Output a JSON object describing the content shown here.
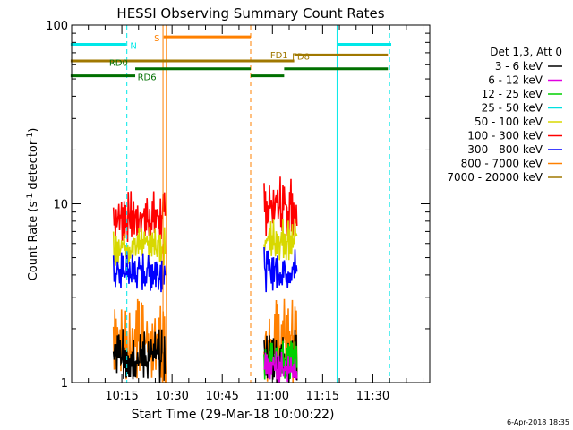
{
  "chart_data": {
    "type": "line",
    "title": "HESSI Observing Summary Count Rates",
    "xlabel": "Start Time (29-Mar-18 10:00:22)",
    "ylabel_main": "Count Rate (s",
    "ylabel_sup1": "-1",
    "ylabel_mid": " detector",
    "ylabel_sup2": "-1",
    "ylabel_end": ")",
    "yscale": "log",
    "ylim": [
      1,
      100
    ],
    "xlim_min": [
      0,
      107
    ],
    "yticks": [
      {
        "v": 1,
        "label": "1"
      },
      {
        "v": 10,
        "label": "10"
      },
      {
        "v": 100,
        "label": "100"
      }
    ],
    "xticks": [
      {
        "m": 15,
        "label": "10:15"
      },
      {
        "m": 30,
        "label": "10:30"
      },
      {
        "m": 45,
        "label": "10:45"
      },
      {
        "m": 60,
        "label": "11:00"
      },
      {
        "m": 75,
        "label": "11:15"
      },
      {
        "m": 90,
        "label": "11:30"
      }
    ],
    "legend": {
      "header": "Det 1,3, Att 0",
      "entries": [
        {
          "label": "3 - 6 keV",
          "color": "#000000"
        },
        {
          "label": "6 - 12 keV",
          "color": "#e000e0"
        },
        {
          "label": "12 - 25 keV",
          "color": "#00d000"
        },
        {
          "label": "25 - 50 keV",
          "color": "#00e0e0"
        },
        {
          "label": "50 - 100 keV",
          "color": "#d8d800"
        },
        {
          "label": "100 - 300 keV",
          "color": "#ff0000"
        },
        {
          "label": "300 - 800 keV",
          "color": "#0000ff"
        },
        {
          "label": "800 - 7000 keV",
          "color": "#ff8000"
        },
        {
          "label": "7000 - 20000 keV",
          "color": "#a07800"
        }
      ]
    },
    "flag_bars": [
      {
        "name": "N",
        "color": "#00e8e8",
        "y": 78,
        "x0": -0.3,
        "x1": 16.3,
        "label_at": 18.5,
        "label_above": false
      },
      {
        "name": "N2",
        "color": "#00e8e8",
        "y": 78,
        "x0": 79.5,
        "x1": 95.5,
        "label_at": null
      },
      {
        "name": "S",
        "color": "#ff8000",
        "y": 86,
        "x0": 27.5,
        "x1": 53.5,
        "label_at": 25.5,
        "label_above": false
      },
      {
        "name": "FD1",
        "color": "#a07800",
        "y": 63,
        "x0": -0.3,
        "x1": 66.5,
        "label_at": 62,
        "label_above": true
      },
      {
        "name": "FD8",
        "color": "#a07800",
        "y": 68,
        "x0": 66.5,
        "x1": 94.5,
        "label_at": 68.5,
        "label_above": false
      },
      {
        "name": "RD0",
        "color": "#007000",
        "y": 57,
        "x0": 19.0,
        "x1": 53.5,
        "label_at": 14.0,
        "label_above": true
      },
      {
        "name": "RD6",
        "color": "#007000",
        "y": 52,
        "x0": -0.3,
        "x1": 19.0,
        "label_at": 22.5,
        "label_above": false
      }
    ],
    "flag_bars_gap": [
      {
        "color": "#007000",
        "y": 52,
        "x0": 53.5,
        "x1": 63.5
      },
      {
        "color": "#007000",
        "y": 57,
        "x0": 63.5,
        "x1": 94.5
      }
    ],
    "vlines": [
      {
        "m": 0,
        "color": "#00e8e8",
        "dash": false
      },
      {
        "m": 16.5,
        "color": "#00e8e8",
        "dash": true
      },
      {
        "m": 27.3,
        "color": "#ff8000",
        "dash": false
      },
      {
        "m": 28.3,
        "color": "#ff8000",
        "dash": false
      },
      {
        "m": 53.5,
        "color": "#ff8000",
        "dash": true
      },
      {
        "m": 79.3,
        "color": "#00e8e8",
        "dash": false
      },
      {
        "m": 95.0,
        "color": "#00e8e8",
        "dash": true
      }
    ],
    "series": [
      {
        "color": "#ff0000",
        "segments": [
          {
            "x0": 12.5,
            "x1": 28.0,
            "lo": 6.0,
            "hi": 12.0
          },
          {
            "x0": 57.5,
            "x1": 67.5,
            "lo": 6.5,
            "hi": 15.0
          }
        ]
      },
      {
        "color": "#d8d800",
        "segments": [
          {
            "x0": 12.5,
            "x1": 28.0,
            "lo": 4.5,
            "hi": 7.5
          },
          {
            "x0": 57.5,
            "x1": 67.5,
            "lo": 4.8,
            "hi": 8.5
          }
        ]
      },
      {
        "color": "#0000ff",
        "segments": [
          {
            "x0": 12.5,
            "x1": 28.0,
            "lo": 3.2,
            "hi": 5.5
          },
          {
            "x0": 57.5,
            "x1": 67.5,
            "lo": 3.2,
            "hi": 5.8
          }
        ]
      },
      {
        "color": "#ff8000",
        "segments": [
          {
            "x0": 12.5,
            "x1": 28.0,
            "lo": 1.0,
            "hi": 3.0
          },
          {
            "x0": 57.5,
            "x1": 67.5,
            "lo": 1.0,
            "hi": 3.0
          }
        ]
      },
      {
        "color": "#000000",
        "segments": [
          {
            "x0": 12.5,
            "x1": 28.0,
            "lo": 1.0,
            "hi": 2.0
          },
          {
            "x0": 57.5,
            "x1": 67.5,
            "lo": 1.0,
            "hi": 2.0
          }
        ]
      },
      {
        "color": "#00d000",
        "segments": [
          {
            "x0": 57.5,
            "x1": 67.5,
            "lo": 1.0,
            "hi": 1.8
          }
        ]
      },
      {
        "color": "#e000e0",
        "segments": [
          {
            "x0": 57.5,
            "x1": 67.5,
            "lo": 1.0,
            "hi": 1.5
          }
        ]
      }
    ]
  },
  "footer": {
    "date": "6-Apr-2018 18:35"
  }
}
